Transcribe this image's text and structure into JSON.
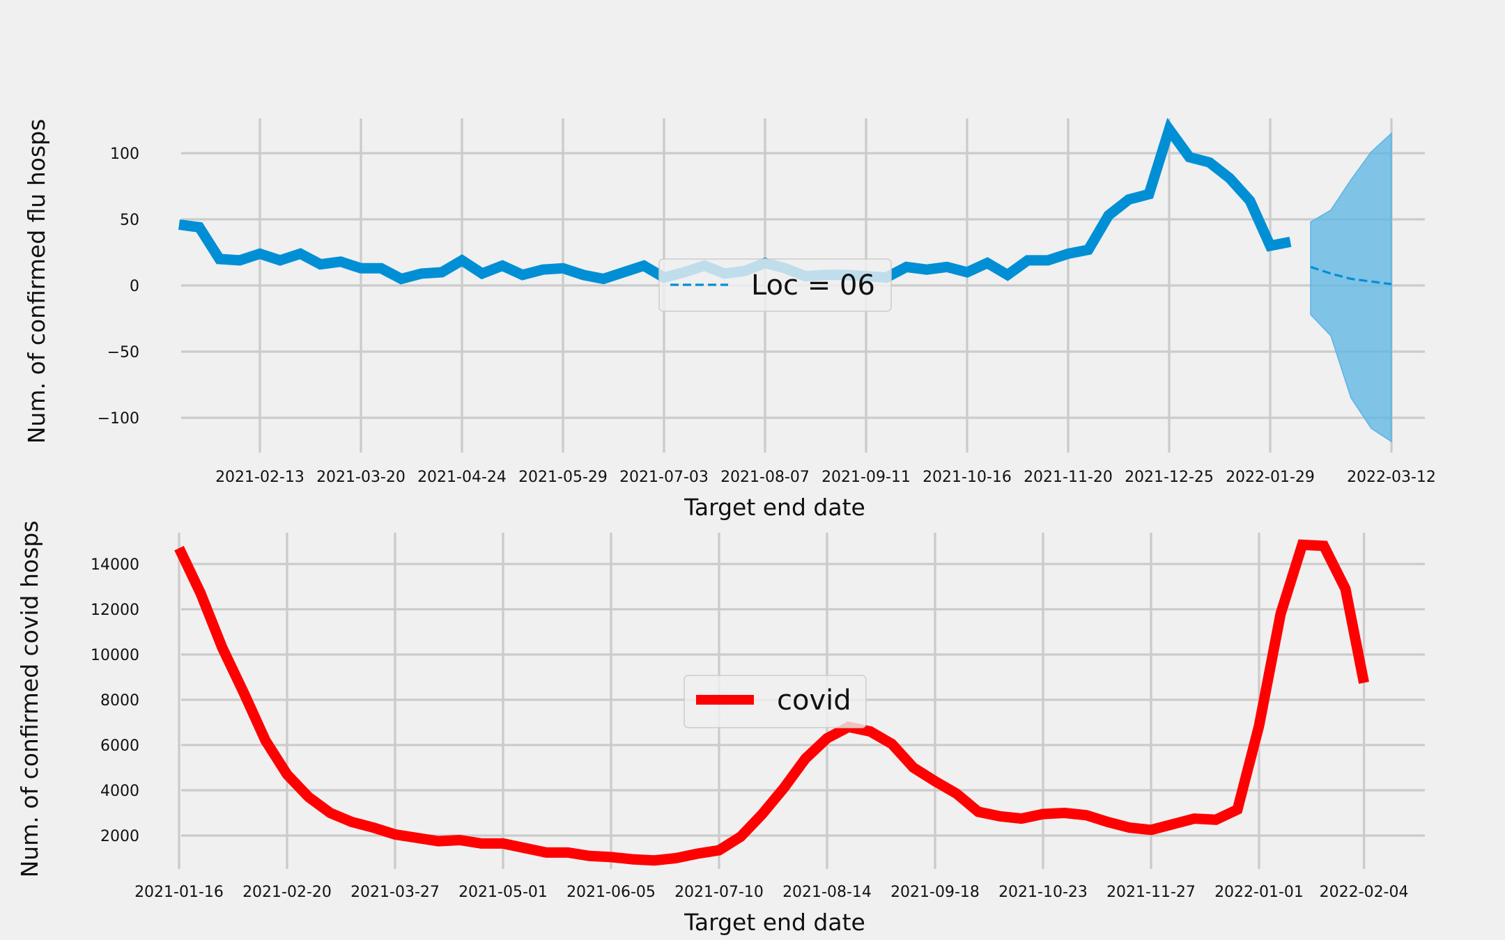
{
  "chart_data": [
    {
      "type": "line",
      "xlabel": "Target end date",
      "ylabel": "Num. of confirmed flu hosps",
      "ylim": [
        -125,
        125
      ],
      "yticks": [
        100,
        50,
        0,
        -50,
        -100
      ],
      "ytick_labels": [
        "100",
        "50",
        "0",
        "−50",
        "−100"
      ],
      "xticks": [
        "2021-02-13",
        "2021-03-20",
        "2021-04-24",
        "2021-05-29",
        "2021-07-03",
        "2021-08-07",
        "2021-09-11",
        "2021-10-16",
        "2021-11-20",
        "2021-12-25",
        "2022-01-29",
        "2022-03-12"
      ],
      "grid": true,
      "legend": {
        "location": "center",
        "entries": [
          "Loc = 06"
        ]
      },
      "colors": {
        "observed": "#008fd5",
        "forecast": "#008fd5",
        "band": "#5ab4e3"
      },
      "series": [
        {
          "kind": "observed",
          "x": [
            "2021-01-16",
            "2021-01-23",
            "2021-01-30",
            "2021-02-06",
            "2021-02-13",
            "2021-02-20",
            "2021-02-27",
            "2021-03-06",
            "2021-03-13",
            "2021-03-20",
            "2021-03-27",
            "2021-04-03",
            "2021-04-10",
            "2021-04-17",
            "2021-04-24",
            "2021-05-01",
            "2021-05-08",
            "2021-05-15",
            "2021-05-22",
            "2021-05-29",
            "2021-06-05",
            "2021-06-12",
            "2021-06-19",
            "2021-06-26",
            "2021-07-03",
            "2021-07-10",
            "2021-07-17",
            "2021-07-24",
            "2021-07-31",
            "2021-08-07",
            "2021-08-14",
            "2021-08-21",
            "2021-08-28",
            "2021-09-04",
            "2021-09-11",
            "2021-09-18",
            "2021-09-25",
            "2021-10-02",
            "2021-10-09",
            "2021-10-16",
            "2021-10-23",
            "2021-10-30",
            "2021-11-06",
            "2021-11-13",
            "2021-11-20",
            "2021-11-27",
            "2021-12-04",
            "2021-12-11",
            "2021-12-18",
            "2021-12-25",
            "2022-01-01",
            "2022-01-08",
            "2022-01-15",
            "2022-01-22",
            "2022-01-29",
            "2022-02-05"
          ],
          "y": [
            46,
            44,
            20,
            19,
            24,
            19,
            24,
            16,
            18,
            13,
            13,
            5,
            9,
            10,
            19,
            9,
            15,
            8,
            12,
            13,
            8,
            5,
            10,
            15,
            6,
            10,
            15,
            9,
            11,
            17,
            13,
            7,
            8,
            8,
            7,
            6,
            14,
            12,
            14,
            10,
            17,
            8,
            19,
            19,
            24,
            27,
            53,
            65,
            69,
            118,
            97,
            93,
            81,
            64,
            30,
            33
          ]
        },
        {
          "kind": "forecast",
          "name": "Loc = 06",
          "x": [
            "2022-02-12",
            "2022-02-19",
            "2022-02-26",
            "2022-03-05",
            "2022-03-12"
          ],
          "y": [
            14,
            9,
            5,
            3,
            1
          ],
          "lower": [
            -22,
            -38,
            -85,
            -108,
            -118
          ],
          "upper": [
            48,
            57,
            80,
            101,
            115
          ]
        }
      ]
    },
    {
      "type": "line",
      "xlabel": "Target end date",
      "ylabel": "Num. of confirmed covid hosps",
      "ylim": [
        500,
        15500
      ],
      "yticks": [
        2000,
        4000,
        6000,
        8000,
        10000,
        12000,
        14000
      ],
      "ytick_labels": [
        "2000",
        "4000",
        "6000",
        "8000",
        "10000",
        "12000",
        "14000"
      ],
      "xticks": [
        "2021-01-16",
        "2021-02-20",
        "2021-03-27",
        "2021-05-01",
        "2021-06-05",
        "2021-07-10",
        "2021-08-14",
        "2021-09-18",
        "2021-10-23",
        "2021-11-27",
        "2022-01-01",
        "2022-02-04"
      ],
      "grid": true,
      "legend": {
        "location": "center",
        "entries": [
          "covid"
        ]
      },
      "colors": {
        "covid": "#ff0000"
      },
      "series": [
        {
          "name": "covid",
          "x": [
            "2021-01-16",
            "2021-01-23",
            "2021-01-30",
            "2021-02-06",
            "2021-02-13",
            "2021-02-20",
            "2021-02-27",
            "2021-03-06",
            "2021-03-13",
            "2021-03-20",
            "2021-03-27",
            "2021-04-03",
            "2021-04-10",
            "2021-04-17",
            "2021-04-24",
            "2021-05-01",
            "2021-05-08",
            "2021-05-15",
            "2021-05-22",
            "2021-05-29",
            "2021-06-05",
            "2021-06-12",
            "2021-06-19",
            "2021-06-26",
            "2021-07-03",
            "2021-07-10",
            "2021-07-17",
            "2021-07-24",
            "2021-07-31",
            "2021-08-07",
            "2021-08-14",
            "2021-08-21",
            "2021-08-28",
            "2021-09-04",
            "2021-09-11",
            "2021-09-18",
            "2021-09-25",
            "2021-10-02",
            "2021-10-09",
            "2021-10-16",
            "2021-10-23",
            "2021-10-30",
            "2021-11-06",
            "2021-11-13",
            "2021-11-20",
            "2021-11-27",
            "2021-12-04",
            "2021-12-11",
            "2021-12-18",
            "2021-12-25",
            "2022-01-01",
            "2022-01-08",
            "2022-01-15",
            "2022-01-22",
            "2022-01-29",
            "2022-02-04"
          ],
          "y": [
            14700,
            12700,
            10300,
            8300,
            6200,
            4700,
            3700,
            3000,
            2600,
            2350,
            2050,
            1900,
            1750,
            1800,
            1650,
            1650,
            1450,
            1250,
            1250,
            1100,
            1050,
            950,
            900,
            1000,
            1200,
            1350,
            1950,
            2950,
            4100,
            5400,
            6300,
            6800,
            6600,
            6050,
            5000,
            4400,
            3850,
            3050,
            2850,
            2750,
            2950,
            3000,
            2900,
            2600,
            2350,
            2250,
            2500,
            2750,
            2700,
            3150,
            6850,
            11800,
            14850,
            14800,
            12900,
            8750
          ]
        }
      ]
    }
  ]
}
